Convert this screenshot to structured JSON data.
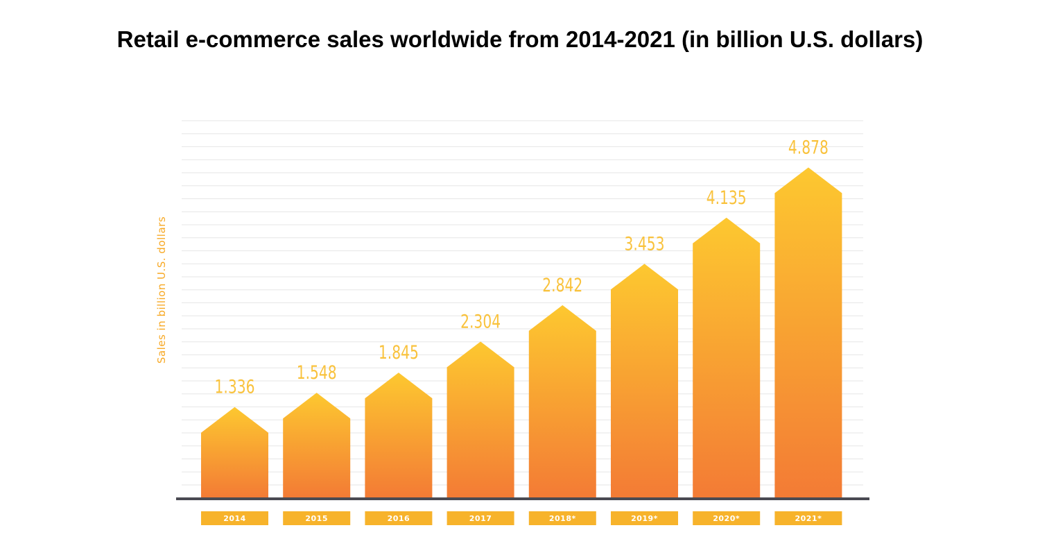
{
  "chart_data": {
    "type": "bar",
    "title": "Retail e-commerce sales worldwide from 2014-2021 (in billion U.S. dollars)",
    "xlabel": "",
    "ylabel": "Sales in billion U.S. dollars",
    "categories": [
      "2014",
      "2015",
      "2016",
      "2017",
      "2018*",
      "2019*",
      "2020*",
      "2021*"
    ],
    "values": [
      1.336,
      1.548,
      1.845,
      2.304,
      2.842,
      3.453,
      4.135,
      4.878
    ],
    "value_labels": [
      "1.336",
      "1.548",
      "1.845",
      "2.304",
      "2.842",
      "3.453",
      "4.135",
      "4.878"
    ],
    "grid": true,
    "colors": {
      "bar_top": "#FDC830",
      "bar_bottom": "#F37B35",
      "value_text": "#F9C23C",
      "category_box": "#F7B32B",
      "category_text": "#FFFFFF",
      "axis_label": "#F7A823",
      "baseline": "#4A4A52",
      "gridline": "#E6E6E6"
    }
  }
}
